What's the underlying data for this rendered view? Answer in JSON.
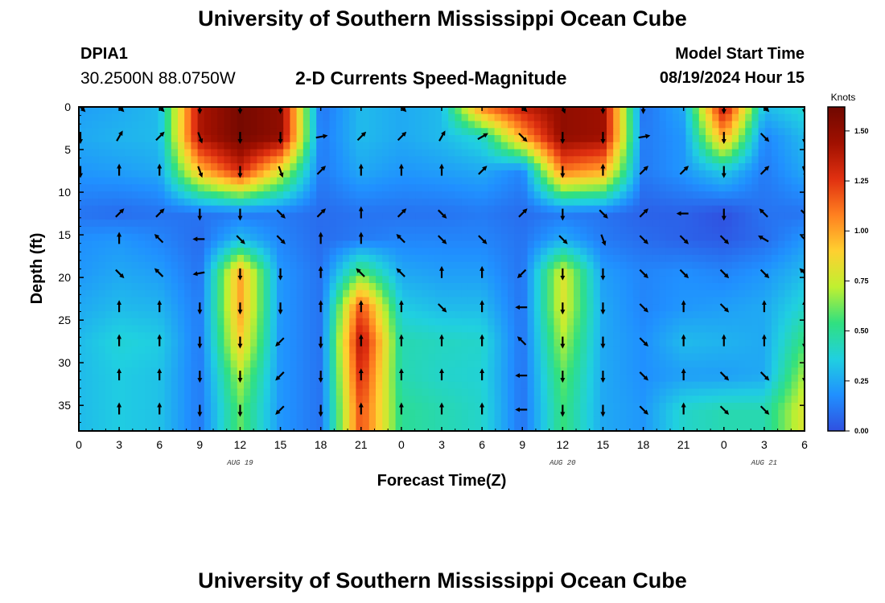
{
  "header": {
    "title": "University of Southern Mississippi Ocean Cube",
    "station": "DPIA1",
    "coords": "30.2500N  88.0750W",
    "subtitle": "2-D Currents Speed-Magnitude",
    "start_label": "Model Start Time",
    "start_value": "08/19/2024 Hour 15"
  },
  "footer": {
    "title": "University of Southern Mississippi Ocean Cube"
  },
  "chart_data": {
    "type": "heatmap",
    "title": "2-D Currents Speed-Magnitude",
    "xlabel": "Forecast Time(Z)",
    "ylabel": "Depth (ft)",
    "x_tick_labels": [
      "0",
      "3",
      "6",
      "9",
      "12",
      "15",
      "18",
      "21",
      "0",
      "3",
      "6",
      "9",
      "12",
      "15",
      "18",
      "21",
      "0",
      "3",
      "6"
    ],
    "x_hours": [
      0,
      3,
      6,
      9,
      12,
      15,
      18,
      21,
      24,
      27,
      30,
      33,
      36,
      39,
      42,
      45,
      48,
      51,
      54
    ],
    "x_range_hours": [
      0,
      54
    ],
    "date_labels": [
      {
        "text": "AUG 19",
        "hour": 12
      },
      {
        "text": "AUG 20",
        "hour": 36
      },
      {
        "text": "AUG 21",
        "hour": 51
      }
    ],
    "y_ticks": [
      0,
      5,
      10,
      15,
      20,
      25,
      30,
      35
    ],
    "y_range": [
      0,
      38
    ],
    "y_inverted": true,
    "colorbar": {
      "label": "Knots",
      "ticks": [
        "1.50",
        "1.25",
        "1.00",
        "0.75",
        "0.50",
        "0.25",
        "0.00"
      ],
      "tick_values": [
        1.5,
        1.25,
        1.0,
        0.75,
        0.5,
        0.25,
        0.0
      ],
      "range": [
        0,
        1.62
      ],
      "colormap": [
        "#3050e0",
        "#2090ff",
        "#20d0e0",
        "#30e080",
        "#c0f030",
        "#ffd030",
        "#ff8020",
        "#e03010",
        "#a01000",
        "#700800"
      ]
    },
    "arrow_depths_ft": [
      0,
      3.5,
      7.5,
      12.5,
      15.5,
      19.5,
      23.5,
      27.5,
      31.5,
      35.5
    ],
    "speed_knots": [
      [
        0.22,
        0.25,
        0.3,
        1.4,
        1.6,
        1.5,
        0.1,
        0.3,
        0.25,
        0.3,
        1.1,
        1.35,
        1.5,
        1.45,
        0.1,
        0.25,
        1.4,
        0.3,
        0.4
      ],
      [
        0.25,
        0.28,
        0.3,
        1.4,
        1.6,
        1.5,
        0.12,
        0.3,
        0.25,
        0.3,
        0.4,
        1.0,
        1.5,
        1.45,
        0.12,
        0.2,
        1.0,
        0.15,
        0.3
      ],
      [
        0.2,
        0.22,
        0.25,
        0.95,
        1.3,
        0.8,
        0.12,
        0.25,
        0.2,
        0.22,
        0.25,
        0.15,
        1.1,
        1.0,
        0.12,
        0.2,
        0.35,
        0.12,
        0.25
      ],
      [
        0.1,
        0.08,
        0.1,
        0.1,
        0.12,
        0.12,
        0.08,
        0.1,
        0.1,
        0.1,
        0.12,
        0.08,
        0.12,
        0.1,
        0.05,
        0.05,
        0.0,
        0.1,
        0.1
      ],
      [
        0.18,
        0.2,
        0.15,
        0.08,
        0.3,
        0.15,
        0.08,
        0.12,
        0.15,
        0.15,
        0.15,
        0.1,
        0.25,
        0.12,
        0.08,
        0.05,
        0.03,
        0.08,
        0.2
      ],
      [
        0.2,
        0.25,
        0.22,
        0.1,
        1.0,
        0.2,
        0.1,
        0.6,
        0.25,
        0.22,
        0.22,
        0.1,
        0.8,
        0.22,
        0.15,
        0.18,
        0.15,
        0.2,
        0.3
      ],
      [
        0.25,
        0.3,
        0.28,
        0.12,
        1.0,
        0.2,
        0.1,
        1.2,
        0.35,
        0.3,
        0.3,
        0.1,
        0.8,
        0.25,
        0.15,
        0.2,
        0.22,
        0.25,
        0.4
      ],
      [
        0.3,
        0.38,
        0.35,
        0.12,
        0.9,
        0.2,
        0.1,
        1.4,
        0.45,
        0.42,
        0.4,
        0.1,
        0.7,
        0.25,
        0.18,
        0.3,
        0.28,
        0.25,
        0.55
      ],
      [
        0.3,
        0.35,
        0.32,
        0.12,
        0.7,
        0.2,
        0.1,
        1.3,
        0.45,
        0.4,
        0.38,
        0.1,
        0.6,
        0.25,
        0.18,
        0.22,
        0.22,
        0.25,
        0.7
      ],
      [
        0.3,
        0.35,
        0.32,
        0.12,
        0.6,
        0.2,
        0.1,
        1.2,
        0.5,
        0.45,
        0.4,
        0.1,
        0.55,
        0.25,
        0.2,
        0.4,
        0.45,
        0.45,
        0.8
      ]
    ],
    "direction_deg": [
      [
        135,
        135,
        135,
        180,
        180,
        180,
        null,
        null,
        135,
        null,
        null,
        135,
        160,
        180,
        180,
        null,
        180,
        135,
        180
      ],
      [
        180,
        30,
        45,
        160,
        180,
        180,
        80,
        45,
        45,
        30,
        60,
        135,
        180,
        180,
        80,
        null,
        180,
        135,
        180
      ],
      [
        180,
        0,
        0,
        160,
        180,
        160,
        45,
        0,
        0,
        0,
        45,
        null,
        180,
        0,
        45,
        45,
        180,
        45,
        160
      ],
      [
        null,
        45,
        45,
        180,
        180,
        135,
        45,
        0,
        45,
        135,
        null,
        45,
        180,
        135,
        45,
        270,
        180,
        315,
        135
      ],
      [
        null,
        0,
        315,
        270,
        135,
        135,
        0,
        0,
        315,
        135,
        135,
        null,
        135,
        160,
        135,
        135,
        135,
        300,
        135
      ],
      [
        null,
        135,
        315,
        260,
        180,
        180,
        0,
        315,
        315,
        0,
        0,
        225,
        180,
        180,
        135,
        135,
        135,
        135,
        315
      ],
      [
        null,
        0,
        0,
        180,
        180,
        180,
        0,
        0,
        0,
        135,
        0,
        270,
        180,
        180,
        135,
        0,
        135,
        0,
        0
      ],
      [
        null,
        0,
        0,
        180,
        180,
        225,
        180,
        0,
        0,
        0,
        0,
        315,
        180,
        180,
        135,
        0,
        0,
        0,
        180
      ],
      [
        null,
        0,
        0,
        180,
        180,
        225,
        180,
        0,
        0,
        0,
        0,
        270,
        180,
        180,
        135,
        0,
        135,
        135,
        180
      ],
      [
        null,
        0,
        0,
        180,
        180,
        225,
        180,
        0,
        0,
        0,
        0,
        270,
        180,
        180,
        135,
        0,
        135,
        135,
        null
      ]
    ]
  }
}
